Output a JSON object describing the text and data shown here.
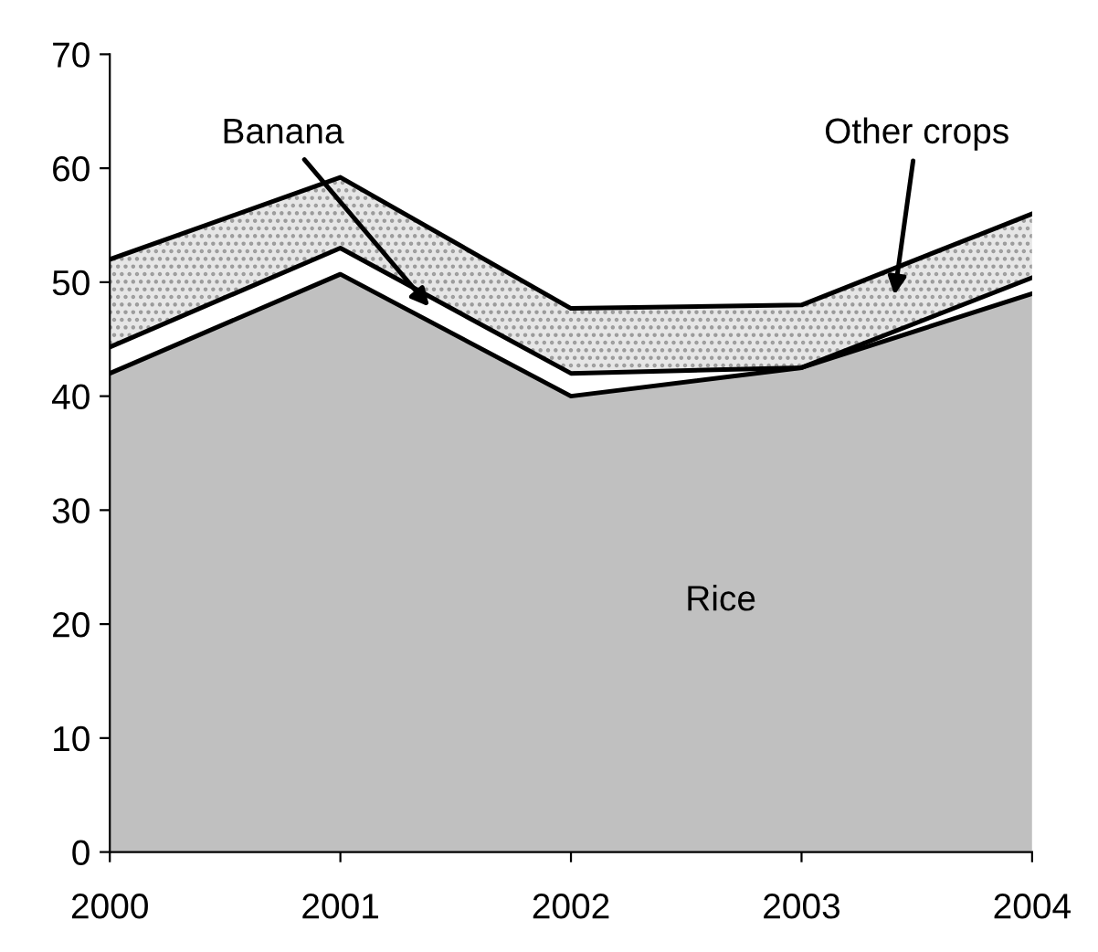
{
  "chart_data": {
    "type": "area",
    "stacked": true,
    "x": [
      2000,
      2001,
      2002,
      2003,
      2004
    ],
    "series": [
      {
        "name": "Rice",
        "color": "#c0c0c0",
        "values": [
          42,
          50.7,
          40,
          42.5,
          49
        ]
      },
      {
        "name": "Banana",
        "color": "#ffffff",
        "values": [
          2.3,
          2.3,
          2,
          0,
          1.4
        ]
      },
      {
        "name": "Other crops",
        "color": "#e6e6e6",
        "values": [
          7.7,
          6.2,
          5.7,
          5.5,
          5.6
        ]
      }
    ],
    "xlim": [
      2000,
      2004
    ],
    "xticks": [
      2000,
      2001,
      2002,
      2003,
      2004
    ],
    "ylim": [
      0,
      70
    ],
    "yticks": [
      0,
      10,
      20,
      30,
      40,
      50,
      60,
      70
    ],
    "grid": false,
    "legend": false
  }
}
